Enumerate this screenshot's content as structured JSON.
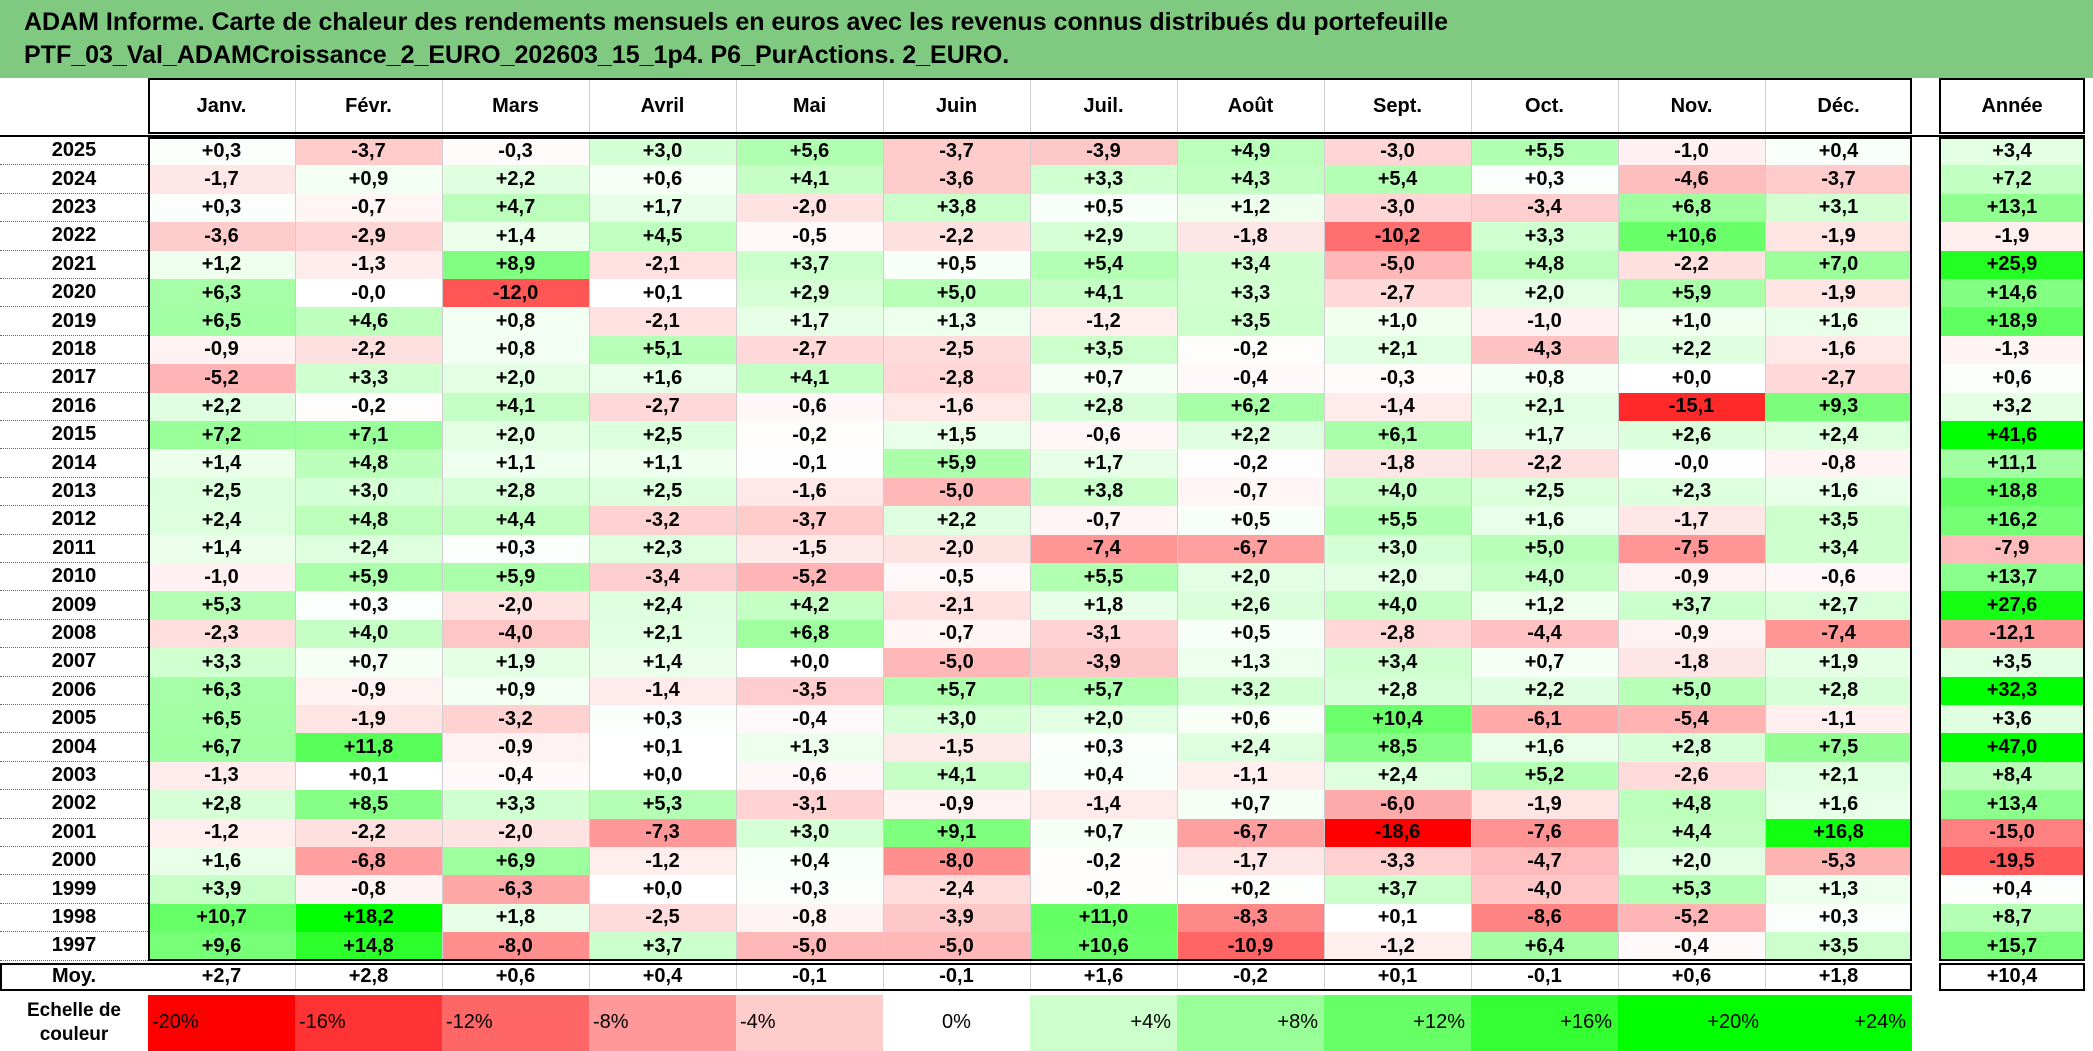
{
  "title": {
    "line1": "ADAM Informe. Carte de chaleur des rendements mensuels en euros avec les revenus connus distribués du portefeuille",
    "line2": "PTF_03_Val_ADAMCroissance_2_EURO_202603_15_1p4. P6_PurActions. 2_EURO."
  },
  "colors": {
    "title_bg": "#80c980",
    "negative": "#ff0000",
    "positive": "#00ff00",
    "neutral": "#ffffff"
  },
  "chart_data": {
    "type": "heatmap",
    "columns": [
      "Janv.",
      "Févr.",
      "Mars",
      "Avril",
      "Mai",
      "Juin",
      "Juil.",
      "Août",
      "Sept.",
      "Oct.",
      "Nov.",
      "Déc."
    ],
    "annual_label": "Année",
    "rows": [
      {
        "year": "2025",
        "values": [
          "+0,3",
          "-3,7",
          "-0,3",
          "+3,0",
          "+5,6",
          "-3,7",
          "-3,9",
          "+4,9",
          "-3,0",
          "+5,5",
          "-1,0",
          "+0,4"
        ],
        "annual": "+3,4"
      },
      {
        "year": "2024",
        "values": [
          "-1,7",
          "+0,9",
          "+2,2",
          "+0,6",
          "+4,1",
          "-3,6",
          "+3,3",
          "+4,3",
          "+5,4",
          "+0,3",
          "-4,6",
          "-3,7"
        ],
        "annual": "+7,2"
      },
      {
        "year": "2023",
        "values": [
          "+0,3",
          "-0,7",
          "+4,7",
          "+1,7",
          "-2,0",
          "+3,8",
          "+0,5",
          "+1,2",
          "-3,0",
          "-3,4",
          "+6,8",
          "+3,1"
        ],
        "annual": "+13,1"
      },
      {
        "year": "2022",
        "values": [
          "-3,6",
          "-2,9",
          "+1,4",
          "+4,5",
          "-0,5",
          "-2,2",
          "+2,9",
          "-1,8",
          "-10,2",
          "+3,3",
          "+10,6",
          "-1,9"
        ],
        "annual": "-1,9"
      },
      {
        "year": "2021",
        "values": [
          "+1,2",
          "-1,3",
          "+8,9",
          "-2,1",
          "+3,7",
          "+0,5",
          "+5,4",
          "+3,4",
          "-5,0",
          "+4,8",
          "-2,2",
          "+7,0"
        ],
        "annual": "+25,9"
      },
      {
        "year": "2020",
        "values": [
          "+6,3",
          "-0,0",
          "-12,0",
          "+0,1",
          "+2,9",
          "+5,0",
          "+4,1",
          "+3,3",
          "-2,7",
          "+2,0",
          "+5,9",
          "-1,9"
        ],
        "annual": "+14,6"
      },
      {
        "year": "2019",
        "values": [
          "+6,5",
          "+4,6",
          "+0,8",
          "-2,1",
          "+1,7",
          "+1,3",
          "-1,2",
          "+3,5",
          "+1,0",
          "-1,0",
          "+1,0",
          "+1,6"
        ],
        "annual": "+18,9"
      },
      {
        "year": "2018",
        "values": [
          "-0,9",
          "-2,2",
          "+0,8",
          "+5,1",
          "-2,7",
          "-2,5",
          "+3,5",
          "-0,2",
          "+2,1",
          "-4,3",
          "+2,2",
          "-1,6"
        ],
        "annual": "-1,3"
      },
      {
        "year": "2017",
        "values": [
          "-5,2",
          "+3,3",
          "+2,0",
          "+1,6",
          "+4,1",
          "-2,8",
          "+0,7",
          "-0,4",
          "-0,3",
          "+0,8",
          "+0,0",
          "-2,7"
        ],
        "annual": "+0,6"
      },
      {
        "year": "2016",
        "values": [
          "+2,2",
          "-0,2",
          "+4,1",
          "-2,7",
          "-0,6",
          "-1,6",
          "+2,8",
          "+6,2",
          "-1,4",
          "+2,1",
          "-15,1",
          "+9,3"
        ],
        "annual": "+3,2"
      },
      {
        "year": "2015",
        "values": [
          "+7,2",
          "+7,1",
          "+2,0",
          "+2,5",
          "-0,2",
          "+1,5",
          "-0,6",
          "+2,2",
          "+6,1",
          "+1,7",
          "+2,6",
          "+2,4"
        ],
        "annual": "+41,6"
      },
      {
        "year": "2014",
        "values": [
          "+1,4",
          "+4,8",
          "+1,1",
          "+1,1",
          "-0,1",
          "+5,9",
          "+1,7",
          "-0,2",
          "-1,8",
          "-2,2",
          "-0,0",
          "-0,8"
        ],
        "annual": "+11,1"
      },
      {
        "year": "2013",
        "values": [
          "+2,5",
          "+3,0",
          "+2,8",
          "+2,5",
          "-1,6",
          "-5,0",
          "+3,8",
          "-0,7",
          "+4,0",
          "+2,5",
          "+2,3",
          "+1,6"
        ],
        "annual": "+18,8"
      },
      {
        "year": "2012",
        "values": [
          "+2,4",
          "+4,8",
          "+4,4",
          "-3,2",
          "-3,7",
          "+2,2",
          "-0,7",
          "+0,5",
          "+5,5",
          "+1,6",
          "-1,7",
          "+3,5"
        ],
        "annual": "+16,2"
      },
      {
        "year": "2011",
        "values": [
          "+1,4",
          "+2,4",
          "+0,3",
          "+2,3",
          "-1,5",
          "-2,0",
          "-7,4",
          "-6,7",
          "+3,0",
          "+5,0",
          "-7,5",
          "+3,4"
        ],
        "annual": "-7,9"
      },
      {
        "year": "2010",
        "values": [
          "-1,0",
          "+5,9",
          "+5,9",
          "-3,4",
          "-5,2",
          "-0,5",
          "+5,5",
          "+2,0",
          "+2,0",
          "+4,0",
          "-0,9",
          "-0,6"
        ],
        "annual": "+13,7"
      },
      {
        "year": "2009",
        "values": [
          "+5,3",
          "+0,3",
          "-2,0",
          "+2,4",
          "+4,2",
          "-2,1",
          "+1,8",
          "+2,6",
          "+4,0",
          "+1,2",
          "+3,7",
          "+2,7"
        ],
        "annual": "+27,6"
      },
      {
        "year": "2008",
        "values": [
          "-2,3",
          "+4,0",
          "-4,0",
          "+2,1",
          "+6,8",
          "-0,7",
          "-3,1",
          "+0,5",
          "-2,8",
          "-4,4",
          "-0,9",
          "-7,4"
        ],
        "annual": "-12,1"
      },
      {
        "year": "2007",
        "values": [
          "+3,3",
          "+0,7",
          "+1,9",
          "+1,4",
          "+0,0",
          "-5,0",
          "-3,9",
          "+1,3",
          "+3,4",
          "+0,7",
          "-1,8",
          "+1,9"
        ],
        "annual": "+3,5"
      },
      {
        "year": "2006",
        "values": [
          "+6,3",
          "-0,9",
          "+0,9",
          "-1,4",
          "-3,5",
          "+5,7",
          "+5,7",
          "+3,2",
          "+2,8",
          "+2,2",
          "+5,0",
          "+2,8"
        ],
        "annual": "+32,3"
      },
      {
        "year": "2005",
        "values": [
          "+6,5",
          "-1,9",
          "-3,2",
          "+0,3",
          "-0,4",
          "+3,0",
          "+2,0",
          "+0,6",
          "+10,4",
          "-6,1",
          "-5,4",
          "-1,1"
        ],
        "annual": "+3,6"
      },
      {
        "year": "2004",
        "values": [
          "+6,7",
          "+11,8",
          "-0,9",
          "+0,1",
          "+1,3",
          "-1,5",
          "+0,3",
          "+2,4",
          "+8,5",
          "+1,6",
          "+2,8",
          "+7,5"
        ],
        "annual": "+47,0"
      },
      {
        "year": "2003",
        "values": [
          "-1,3",
          "+0,1",
          "-0,4",
          "+0,0",
          "-0,6",
          "+4,1",
          "+0,4",
          "-1,1",
          "+2,4",
          "+5,2",
          "-2,6",
          "+2,1"
        ],
        "annual": "+8,4"
      },
      {
        "year": "2002",
        "values": [
          "+2,8",
          "+8,5",
          "+3,3",
          "+5,3",
          "-3,1",
          "-0,9",
          "-1,4",
          "+0,7",
          "-6,0",
          "-1,9",
          "+4,8",
          "+1,6"
        ],
        "annual": "+13,4"
      },
      {
        "year": "2001",
        "values": [
          "-1,2",
          "-2,2",
          "-2,0",
          "-7,3",
          "+3,0",
          "+9,1",
          "+0,7",
          "-6,7",
          "-18,6",
          "-7,6",
          "+4,4",
          "+16,8"
        ],
        "annual": "-15,0"
      },
      {
        "year": "2000",
        "values": [
          "+1,6",
          "-6,8",
          "+6,9",
          "-1,2",
          "+0,4",
          "-8,0",
          "-0,2",
          "-1,7",
          "-3,3",
          "-4,7",
          "+2,0",
          "-5,3"
        ],
        "annual": "-19,5"
      },
      {
        "year": "1999",
        "values": [
          "+3,9",
          "-0,8",
          "-6,3",
          "+0,0",
          "+0,3",
          "-2,4",
          "-0,2",
          "+0,2",
          "+3,7",
          "-4,0",
          "+5,3",
          "+1,3"
        ],
        "annual": "+0,4"
      },
      {
        "year": "1998",
        "values": [
          "+10,7",
          "+18,2",
          "+1,8",
          "-2,5",
          "-0,8",
          "-3,9",
          "+11,0",
          "-8,3",
          "+0,1",
          "-8,6",
          "-5,2",
          "+0,3"
        ],
        "annual": "+8,7"
      },
      {
        "year": "1997",
        "values": [
          "+9,6",
          "+14,8",
          "-8,0",
          "+3,7",
          "-5,0",
          "-5,0",
          "+10,6",
          "-10,9",
          "-1,2",
          "+6,4",
          "-0,4",
          "+3,5"
        ],
        "annual": "+15,7"
      }
    ],
    "average": {
      "label": "Moy.",
      "values": [
        "+2,7",
        "+2,8",
        "+0,6",
        "+0,4",
        "-0,1",
        "-0,1",
        "+1,6",
        "-0,2",
        "+0,1",
        "-0,1",
        "+0,6",
        "+1,8"
      ],
      "annual": "+10,4"
    },
    "scale": {
      "label_line1": "Echelle de",
      "label_line2": "couleur",
      "items": [
        "-20%",
        "-16%",
        "-12%",
        "-8%",
        "-4%",
        "0%",
        "+4%",
        "+8%",
        "+12%",
        "+16%",
        "+20%",
        "+24%"
      ]
    }
  }
}
